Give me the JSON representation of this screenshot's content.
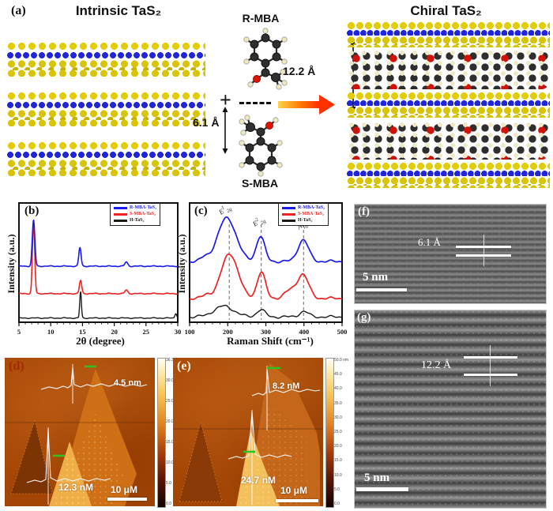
{
  "figure": {
    "panel_a": {
      "label": "(a)",
      "left_title": "Intrinsic TaS₂",
      "right_title": "Chiral TaS₂",
      "r_mba": "R-MBA",
      "s_mba": "S-MBA",
      "plus": "+",
      "spacing_left": "6.1 Å",
      "spacing_right": "12.2 Å"
    },
    "panel_b": {
      "label": "(b)"
    },
    "panel_c": {
      "label": "(c)"
    },
    "panel_d": {
      "label": "(d)",
      "height_top": "4.5 nm",
      "height_bottom": "12.3 nM",
      "scale": "10 μM",
      "colorbar": [
        "36.3 nm",
        "30.0",
        "25.0",
        "20.0",
        "15.0",
        "10.0",
        "5.0",
        "0.0"
      ]
    },
    "panel_e": {
      "label": "(e)",
      "height_top": "8.2 nM",
      "height_bottom": "24.7 nM",
      "scale": "10 μM",
      "colorbar": [
        "50.0 nm",
        "45.0",
        "40.0",
        "35.0",
        "30.0",
        "25.0",
        "20.0",
        "15.0",
        "10.0",
        "5.0",
        "0.0"
      ]
    },
    "panel_f": {
      "label": "(f)",
      "spacing": "6.1 Å",
      "scale": "5 nm"
    },
    "panel_g": {
      "label": "(g)",
      "spacing": "12.2 Å",
      "scale": "5 nm"
    }
  },
  "chart_data": [
    {
      "id": "xrd",
      "type": "line",
      "title": "",
      "xlabel": "2θ (degree)",
      "ylabel": "Intensity (a.u.)",
      "xlim": [
        5,
        30
      ],
      "xticks": [
        5,
        10,
        15,
        20,
        25,
        30
      ],
      "minor_step": 1,
      "jitter": 0.0025,
      "jfreq": 2.7,
      "grid": false,
      "legend_pos": "top-right",
      "series": [
        {
          "name": "R-MBA-TaS₂",
          "color": "#1a1aee",
          "baseline": 0.47,
          "width": 1.6,
          "peaks": [
            {
              "center": 7.3,
              "height": 0.385,
              "width": 0.2
            },
            {
              "center": 14.6,
              "height": 0.155,
              "width": 0.18
            },
            {
              "center": 21.9,
              "height": 0.035,
              "width": 0.22
            }
          ]
        },
        {
          "name": "S-MBA-TaS₂",
          "color": "#ee2222",
          "baseline": 0.24,
          "width": 1.6,
          "peaks": [
            {
              "center": 7.3,
              "height": 0.6,
              "width": 0.18
            },
            {
              "center": 14.7,
              "height": 0.11,
              "width": 0.18
            },
            {
              "center": 21.9,
              "height": 0.03,
              "width": 0.22
            }
          ]
        },
        {
          "name": "H-TaS₂",
          "color": "#1a1a1a",
          "baseline": 0.035,
          "width": 1.4,
          "peaks": [
            {
              "center": 14.7,
              "height": 0.22,
              "width": 0.13
            },
            {
              "center": 29.7,
              "height": 0.04,
              "width": 0.15
            }
          ]
        }
      ]
    },
    {
      "id": "raman",
      "type": "line",
      "title": "",
      "xlabel": "Raman Shift (cm⁻¹)",
      "ylabel": "Intensity (a.u.)",
      "xlim": [
        100,
        500
      ],
      "xticks": [
        100,
        200,
        300,
        400,
        500
      ],
      "minor_step": 20,
      "jitter": 0.007,
      "jfreq": 0.11,
      "grid": false,
      "legend_pos": "top-right",
      "dashed_x": [
        204,
        288,
        399
      ],
      "peak_labels": [
        {
          "x": 195,
          "fy": 0.07,
          "base": "E",
          "sup": "1",
          "sub": "2g"
        },
        {
          "x": 284,
          "fy": 0.17,
          "base": "E",
          "sup": "2",
          "sub": "2g"
        },
        {
          "x": 397,
          "fy": 0.2,
          "base": "A",
          "sup": "",
          "sub": "1g"
        }
      ],
      "series": [
        {
          "name": "R-MBA-TaS₂",
          "color": "#1a1aee",
          "baseline": 0.51,
          "width": 1.7,
          "peaks": [
            {
              "center": 140,
              "height": 0.03,
              "width": 10
            },
            {
              "center": 198,
              "height": 0.365,
              "width": 24
            },
            {
              "center": 286,
              "height": 0.21,
              "width": 11
            },
            {
              "center": 398,
              "height": 0.18,
              "width": 14
            }
          ]
        },
        {
          "name": "S-MBA-TaS₂",
          "color": "#ee2222",
          "baseline": 0.2,
          "width": 1.7,
          "peaks": [
            {
              "center": 145,
              "height": 0.03,
              "width": 10
            },
            {
              "center": 205,
              "height": 0.375,
              "width": 22
            },
            {
              "center": 288,
              "height": 0.22,
              "width": 11
            },
            {
              "center": 362,
              "height": 0.06,
              "width": 14
            },
            {
              "center": 397,
              "height": 0.2,
              "width": 15
            }
          ]
        },
        {
          "name": "H-TaS₂",
          "color": "#1a1a1a",
          "baseline": 0.045,
          "width": 1.4,
          "peaks": [
            {
              "center": 190,
              "height": 0.09,
              "width": 26
            },
            {
              "center": 287,
              "height": 0.06,
              "width": 11
            },
            {
              "center": 400,
              "height": 0.045,
              "width": 12
            }
          ]
        }
      ]
    }
  ]
}
